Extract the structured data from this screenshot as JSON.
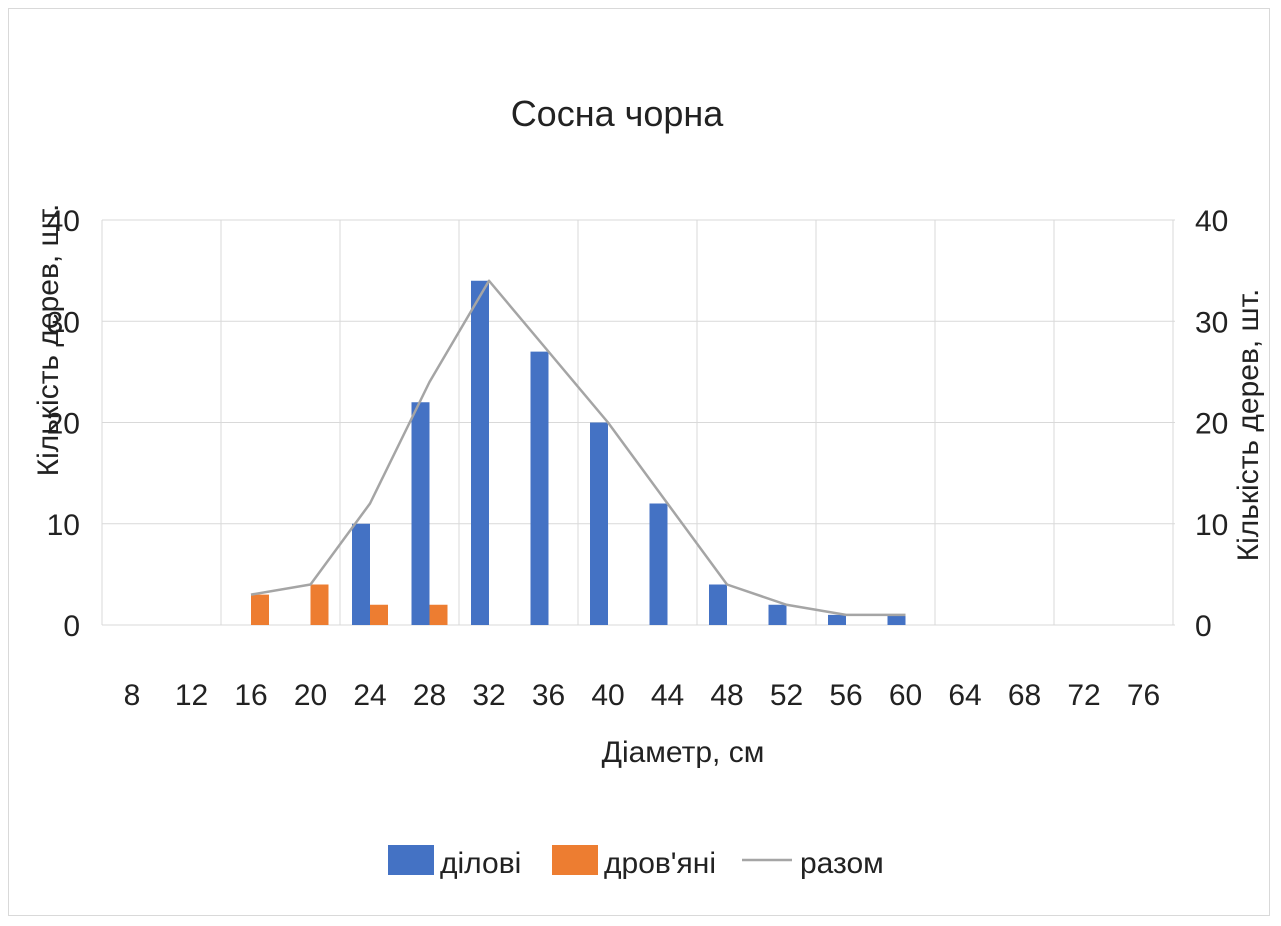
{
  "chart_data": {
    "type": "bar",
    "title": "Сосна чорна",
    "xlabel": "Діаметр, см",
    "ylabel": "Кількість дерев, шт.",
    "y2label": "Кількість дерев, шт.",
    "ylim": [
      0,
      40
    ],
    "yticks": [
      "0",
      "10",
      "20",
      "30",
      "40"
    ],
    "grid": true,
    "legend": "bottom",
    "categories": [
      "8",
      "12",
      "16",
      "20",
      "24",
      "28",
      "32",
      "36",
      "40",
      "44",
      "48",
      "52",
      "56",
      "60",
      "64",
      "68",
      "72",
      "76"
    ],
    "series": [
      {
        "name": "ділові",
        "kind": "bar",
        "color": "#4472c4",
        "values": [
          0,
          0,
          0,
          0,
          10,
          22,
          34,
          27,
          20,
          12,
          4,
          2,
          1,
          1,
          0,
          0,
          0,
          0
        ]
      },
      {
        "name": "дров'яні",
        "kind": "bar",
        "color": "#ed7d31",
        "values": [
          0,
          0,
          3,
          4,
          2,
          2,
          0,
          0,
          0,
          0,
          0,
          0,
          0,
          0,
          0,
          0,
          0,
          0
        ]
      },
      {
        "name": "разом",
        "kind": "line",
        "color": "#a5a5a5",
        "values": [
          null,
          null,
          3,
          4,
          12,
          24,
          34,
          27,
          20,
          12,
          4,
          2,
          1,
          1,
          null,
          null,
          null,
          null
        ]
      }
    ]
  }
}
